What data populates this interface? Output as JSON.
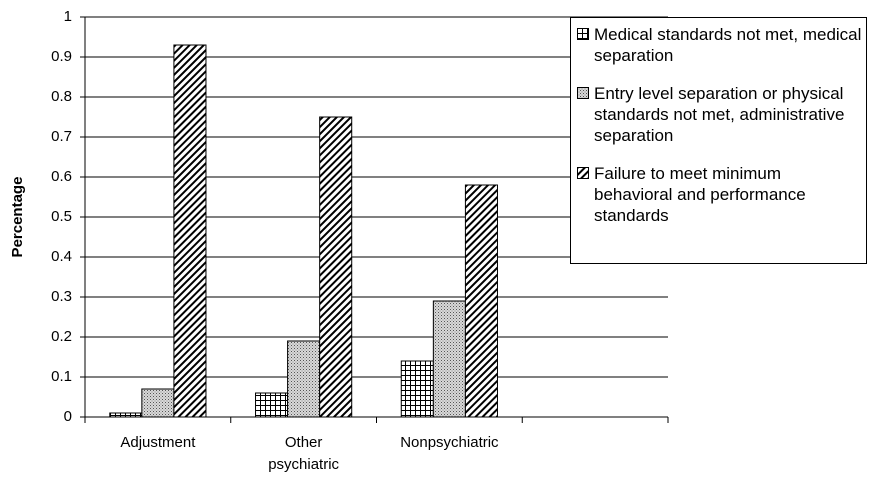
{
  "chart_data": {
    "type": "bar",
    "y_label": "Percentage",
    "categories": [
      "Adjustment",
      "Other psychiatric",
      "Nonpsychiatric",
      null
    ],
    "series": [
      {
        "name": "Medical standards not met, medical separation",
        "color": "#000000",
        "pattern": "grid",
        "values": [
          0.01,
          0.06,
          0.14,
          null
        ]
      },
      {
        "name": "Entry level separation or physical standards not met, administrative separation",
        "color": "#000000",
        "pattern": "dots",
        "values": [
          0.07,
          0.19,
          0.29,
          null
        ]
      },
      {
        "name": "Failure to meet minimum behavioral and performance standards",
        "color": "#000000",
        "pattern": "hatch",
        "values": [
          0.93,
          0.75,
          0.58,
          null
        ]
      }
    ],
    "ylim": [
      0,
      1
    ],
    "yticks": [
      0,
      0.1,
      0.2,
      0.3,
      0.4,
      0.5,
      0.6,
      0.7,
      0.8,
      0.9,
      1
    ],
    "grid": true,
    "legend": "upper right"
  }
}
